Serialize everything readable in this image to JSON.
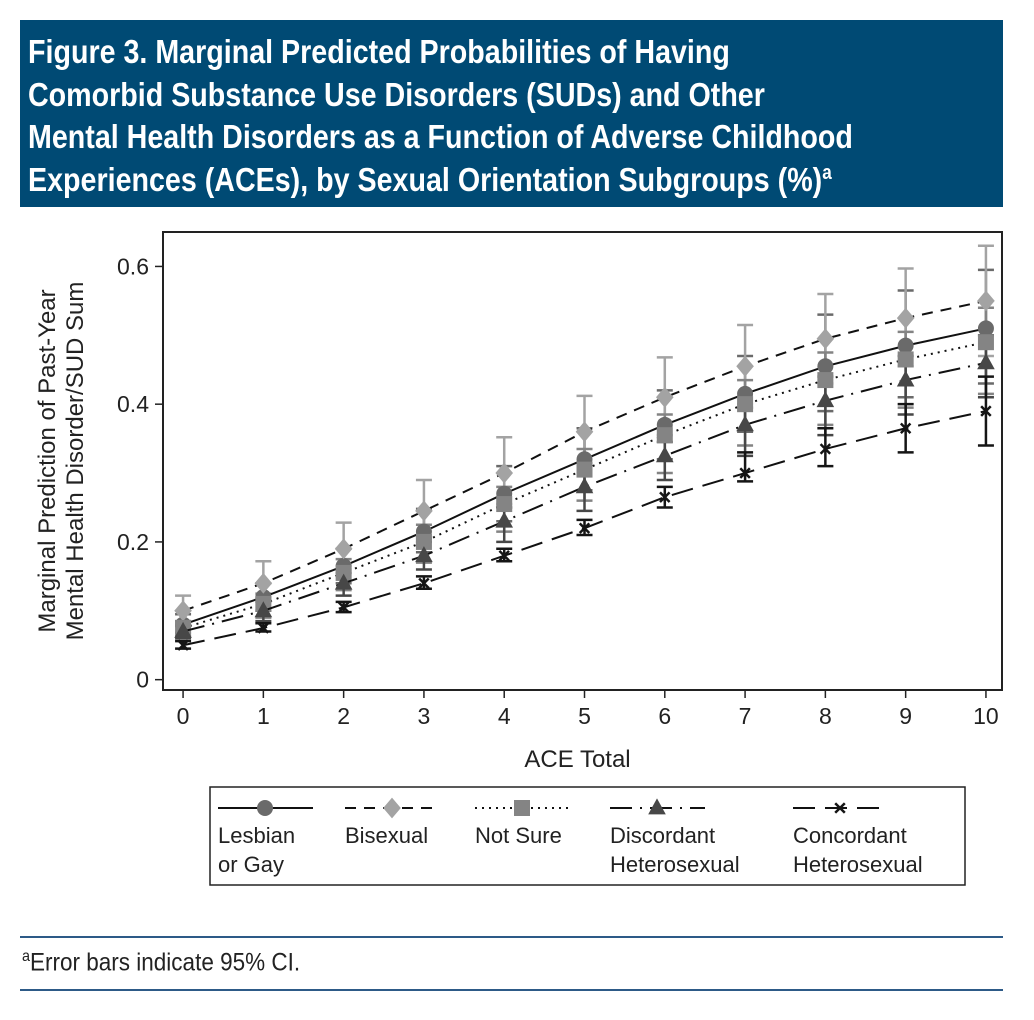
{
  "figure": {
    "title_lines": [
      "Figure 3. Marginal Predicted Probabilities of Having",
      "Comorbid Substance Use Disorders (SUDs) and Other",
      "Mental Health Disorders as a Function of Adverse Childhood",
      "Experiences (ACEs), by Sexual Orientation Subgroups (%)"
    ],
    "title_superscript": "a",
    "banner_color": "#004a74",
    "footnote_marker": "a",
    "footnote": "Error bars indicate 95% CI."
  },
  "chart_data": {
    "type": "line",
    "xlabel": "ACE Total",
    "ylabel_lines": [
      "Marginal Prediction of Past-Year",
      "Mental Health Disorder/SUD Sum"
    ],
    "x": [
      0,
      1,
      2,
      3,
      4,
      5,
      6,
      7,
      8,
      9,
      10
    ],
    "xticks": [
      "0",
      "1",
      "2",
      "3",
      "4",
      "5",
      "6",
      "7",
      "8",
      "9",
      "10"
    ],
    "yticks": [
      {
        "v": 0,
        "label": "0"
      },
      {
        "v": 0.2,
        "label": "0.2"
      },
      {
        "v": 0.4,
        "label": "0.4"
      },
      {
        "v": 0.6,
        "label": "0.6"
      }
    ],
    "xlim": [
      -0.25,
      10.2
    ],
    "ylim": [
      -0.015,
      0.65
    ],
    "grid": false,
    "legend_placement": "bottom",
    "error_bars": "95% CI",
    "series": [
      {
        "name": "Lesbian or Gay",
        "legend_lines": [
          "Lesbian",
          "or Gay"
        ],
        "marker": "circle",
        "color": "#6a6a6a",
        "dash": "",
        "values": [
          0.08,
          0.12,
          0.165,
          0.215,
          0.27,
          0.32,
          0.37,
          0.415,
          0.455,
          0.485,
          0.51
        ],
        "ci_low": [
          0.068,
          0.1,
          0.14,
          0.185,
          0.23,
          0.275,
          0.32,
          0.36,
          0.39,
          0.41,
          0.43
        ],
        "ci_high": [
          0.095,
          0.14,
          0.19,
          0.248,
          0.31,
          0.365,
          0.42,
          0.47,
          0.53,
          0.565,
          0.595
        ]
      },
      {
        "name": "Bisexual",
        "legend_lines": [
          "Bisexual"
        ],
        "marker": "diamond",
        "color": "#a3a3a3",
        "dash": "11 8",
        "values": [
          0.1,
          0.14,
          0.19,
          0.245,
          0.3,
          0.36,
          0.41,
          0.455,
          0.495,
          0.525,
          0.55
        ],
        "ci_low": [
          0.085,
          0.118,
          0.16,
          0.205,
          0.255,
          0.31,
          0.355,
          0.4,
          0.43,
          0.455,
          0.47
        ],
        "ci_high": [
          0.122,
          0.172,
          0.228,
          0.29,
          0.352,
          0.412,
          0.468,
          0.515,
          0.56,
          0.597,
          0.63
        ]
      },
      {
        "name": "Not Sure",
        "legend_lines": [
          "Not Sure"
        ],
        "marker": "square",
        "color": "#848484",
        "dash": "2 5",
        "values": [
          0.075,
          0.11,
          0.155,
          0.2,
          0.255,
          0.305,
          0.355,
          0.4,
          0.435,
          0.465,
          0.49
        ],
        "ci_low": [
          0.063,
          0.09,
          0.13,
          0.17,
          0.215,
          0.26,
          0.3,
          0.34,
          0.37,
          0.395,
          0.415
        ],
        "ci_high": [
          0.085,
          0.125,
          0.175,
          0.225,
          0.28,
          0.335,
          0.385,
          0.435,
          0.475,
          0.505,
          0.54
        ]
      },
      {
        "name": "Discordant Heterosexual",
        "legend_lines": [
          "Discordant",
          "Heterosexual"
        ],
        "marker": "triangle",
        "color": "#474747",
        "dash": "22 8 2 8",
        "values": [
          0.07,
          0.1,
          0.14,
          0.18,
          0.23,
          0.28,
          0.325,
          0.37,
          0.405,
          0.435,
          0.46
        ],
        "ci_low": [
          0.06,
          0.085,
          0.122,
          0.16,
          0.2,
          0.245,
          0.29,
          0.325,
          0.355,
          0.385,
          0.41
        ],
        "ci_high": [
          0.078,
          0.113,
          0.155,
          0.2,
          0.25,
          0.3,
          0.345,
          0.395,
          0.44,
          0.47,
          0.5
        ]
      },
      {
        "name": "Concordant Heterosexual",
        "legend_lines": [
          "Concordant",
          "Heterosexual"
        ],
        "marker": "x",
        "color": "#151515",
        "dash": "22 10",
        "values": [
          0.05,
          0.075,
          0.105,
          0.14,
          0.18,
          0.22,
          0.265,
          0.3,
          0.335,
          0.365,
          0.39
        ],
        "ci_low": [
          0.045,
          0.07,
          0.098,
          0.132,
          0.172,
          0.21,
          0.25,
          0.288,
          0.31,
          0.33,
          0.34
        ],
        "ci_high": [
          0.056,
          0.082,
          0.113,
          0.15,
          0.19,
          0.232,
          0.28,
          0.33,
          0.365,
          0.4,
          0.44
        ]
      }
    ]
  }
}
